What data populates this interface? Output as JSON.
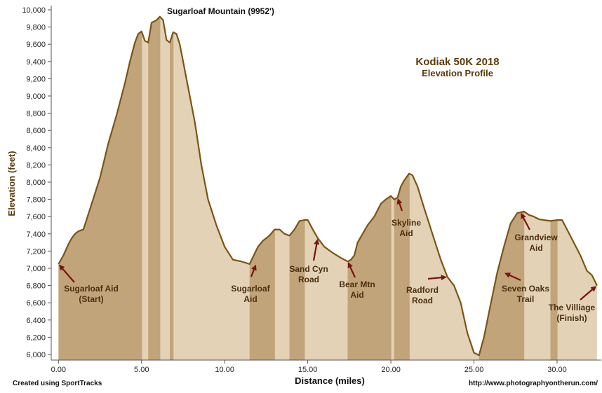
{
  "chart_data": {
    "type": "area",
    "title": "Kodiak 50K 2018",
    "subtitle": "Elevation Profile",
    "xlabel": "Distance (miles)",
    "ylabel": "Elevation (feet)",
    "xlim": [
      -0.2,
      32.5
    ],
    "ylim": [
      5950,
      10000
    ],
    "x_ticks": [
      0,
      5,
      10,
      15,
      20,
      25,
      30
    ],
    "x_tick_labels": [
      "0.00",
      "5.00",
      "10.00",
      "15.00",
      "20.00",
      "25.00",
      "30.00"
    ],
    "y_ticks": [
      6000,
      6200,
      6400,
      6600,
      6800,
      7000,
      7200,
      7400,
      7600,
      7800,
      8000,
      8200,
      8400,
      8600,
      8800,
      9000,
      9200,
      9400,
      9600,
      9800,
      10000
    ],
    "y_tick_labels": [
      "6,000",
      "6,200",
      "6,400",
      "6,600",
      "6,800",
      "7,000",
      "7,200",
      "7,400",
      "7,600",
      "7,800",
      "8,000",
      "8,200",
      "8,400",
      "8,600",
      "8,800",
      "9,000",
      "9,200",
      "9,400",
      "9,600",
      "9,800",
      "10,000"
    ],
    "grid": false,
    "series": [
      {
        "x": [
          0.0,
          0.3,
          0.6,
          0.8,
          1.0,
          1.2,
          1.5,
          2.0,
          2.5,
          3.0,
          3.5,
          4.0,
          4.3,
          4.6,
          4.8,
          5.0,
          5.2,
          5.4,
          5.6,
          5.9,
          6.1,
          6.3,
          6.5,
          6.7,
          6.9,
          7.1,
          7.3,
          7.5,
          7.8,
          8.2,
          8.6,
          9.0,
          9.5,
          10.0,
          10.5,
          11.0,
          11.5,
          12.0,
          12.3,
          12.7,
          13.0,
          13.3,
          13.6,
          13.9,
          14.2,
          14.5,
          14.8,
          15.0,
          15.3,
          15.6,
          16.0,
          16.5,
          17.0,
          17.4,
          17.6,
          17.8,
          18.0,
          18.3,
          18.6,
          19.0,
          19.4,
          19.7,
          20.0,
          20.2,
          20.4,
          20.6,
          20.8,
          21.1,
          21.3,
          21.6,
          22.0,
          22.5,
          23.0,
          23.4,
          23.8,
          24.2,
          24.6,
          25.0,
          25.3,
          25.6,
          26.0,
          26.4,
          26.8,
          27.2,
          27.6,
          28.0,
          28.3,
          28.6,
          28.9,
          29.2,
          29.6,
          30.0,
          30.3,
          30.6,
          31.0,
          31.4,
          31.8,
          32.1,
          32.4
        ],
        "y": [
          7050,
          7150,
          7280,
          7350,
          7400,
          7430,
          7450,
          7750,
          8050,
          8450,
          8780,
          9150,
          9400,
          9620,
          9720,
          9750,
          9640,
          9620,
          9850,
          9880,
          9920,
          9880,
          9650,
          9620,
          9740,
          9720,
          9600,
          9400,
          9100,
          8700,
          8200,
          7800,
          7500,
          7250,
          7100,
          7080,
          7050,
          7250,
          7320,
          7380,
          7450,
          7450,
          7400,
          7380,
          7450,
          7550,
          7560,
          7560,
          7450,
          7350,
          7250,
          7180,
          7120,
          7080,
          7100,
          7150,
          7300,
          7400,
          7500,
          7600,
          7750,
          7800,
          7840,
          7800,
          7820,
          7950,
          8020,
          8100,
          8080,
          7950,
          7700,
          7400,
          7100,
          6900,
          6800,
          6600,
          6250,
          6020,
          5990,
          6200,
          6580,
          6950,
          7250,
          7520,
          7640,
          7660,
          7620,
          7600,
          7570,
          7560,
          7550,
          7560,
          7560,
          7450,
          7300,
          7150,
          6970,
          6920,
          6800
        ]
      }
    ],
    "annotations": [
      {
        "lines": [
          "Sugarloaf Mountain (9952')"
        ],
        "x": 6.1,
        "y": 9952,
        "arrow": false
      },
      {
        "lines": [
          "Sugarloaf Aid",
          "(Start)"
        ],
        "x": 0.0,
        "y": 7050,
        "arrow": true
      },
      {
        "lines": [
          "Sugarloaf",
          "Aid"
        ],
        "x": 11.9,
        "y": 7050,
        "arrow": true
      },
      {
        "lines": [
          "Sand Cyn",
          "Road"
        ],
        "x": 15.6,
        "y": 7350,
        "arrow": true
      },
      {
        "lines": [
          "Bear Mtn",
          "Aid"
        ],
        "x": 17.4,
        "y": 7080,
        "arrow": true
      },
      {
        "lines": [
          "Skyline",
          "Aid"
        ],
        "x": 20.4,
        "y": 7820,
        "arrow": true
      },
      {
        "lines": [
          "Radford",
          "Road"
        ],
        "x": 23.4,
        "y": 6900,
        "arrow": true
      },
      {
        "lines": [
          "Seven Oaks",
          "Trail"
        ],
        "x": 26.8,
        "y": 6950,
        "arrow": true
      },
      {
        "lines": [
          "Grandview",
          "Aid"
        ],
        "x": 27.8,
        "y": 7650,
        "arrow": true
      },
      {
        "lines": [
          "The Villiage",
          "(Finish)"
        ],
        "x": 32.4,
        "y": 6800,
        "arrow": true
      }
    ],
    "colors": {
      "fill_light": "#e3d2b6",
      "fill_dark": "#c2a47a",
      "line": "#7a5514",
      "arrow": "#7a1410",
      "tick_text": "#222222",
      "axis_title": "#5a3a0c"
    }
  },
  "footer": {
    "left": "Created using SportTracks",
    "right": "http://www.photographyontherun.com/"
  }
}
